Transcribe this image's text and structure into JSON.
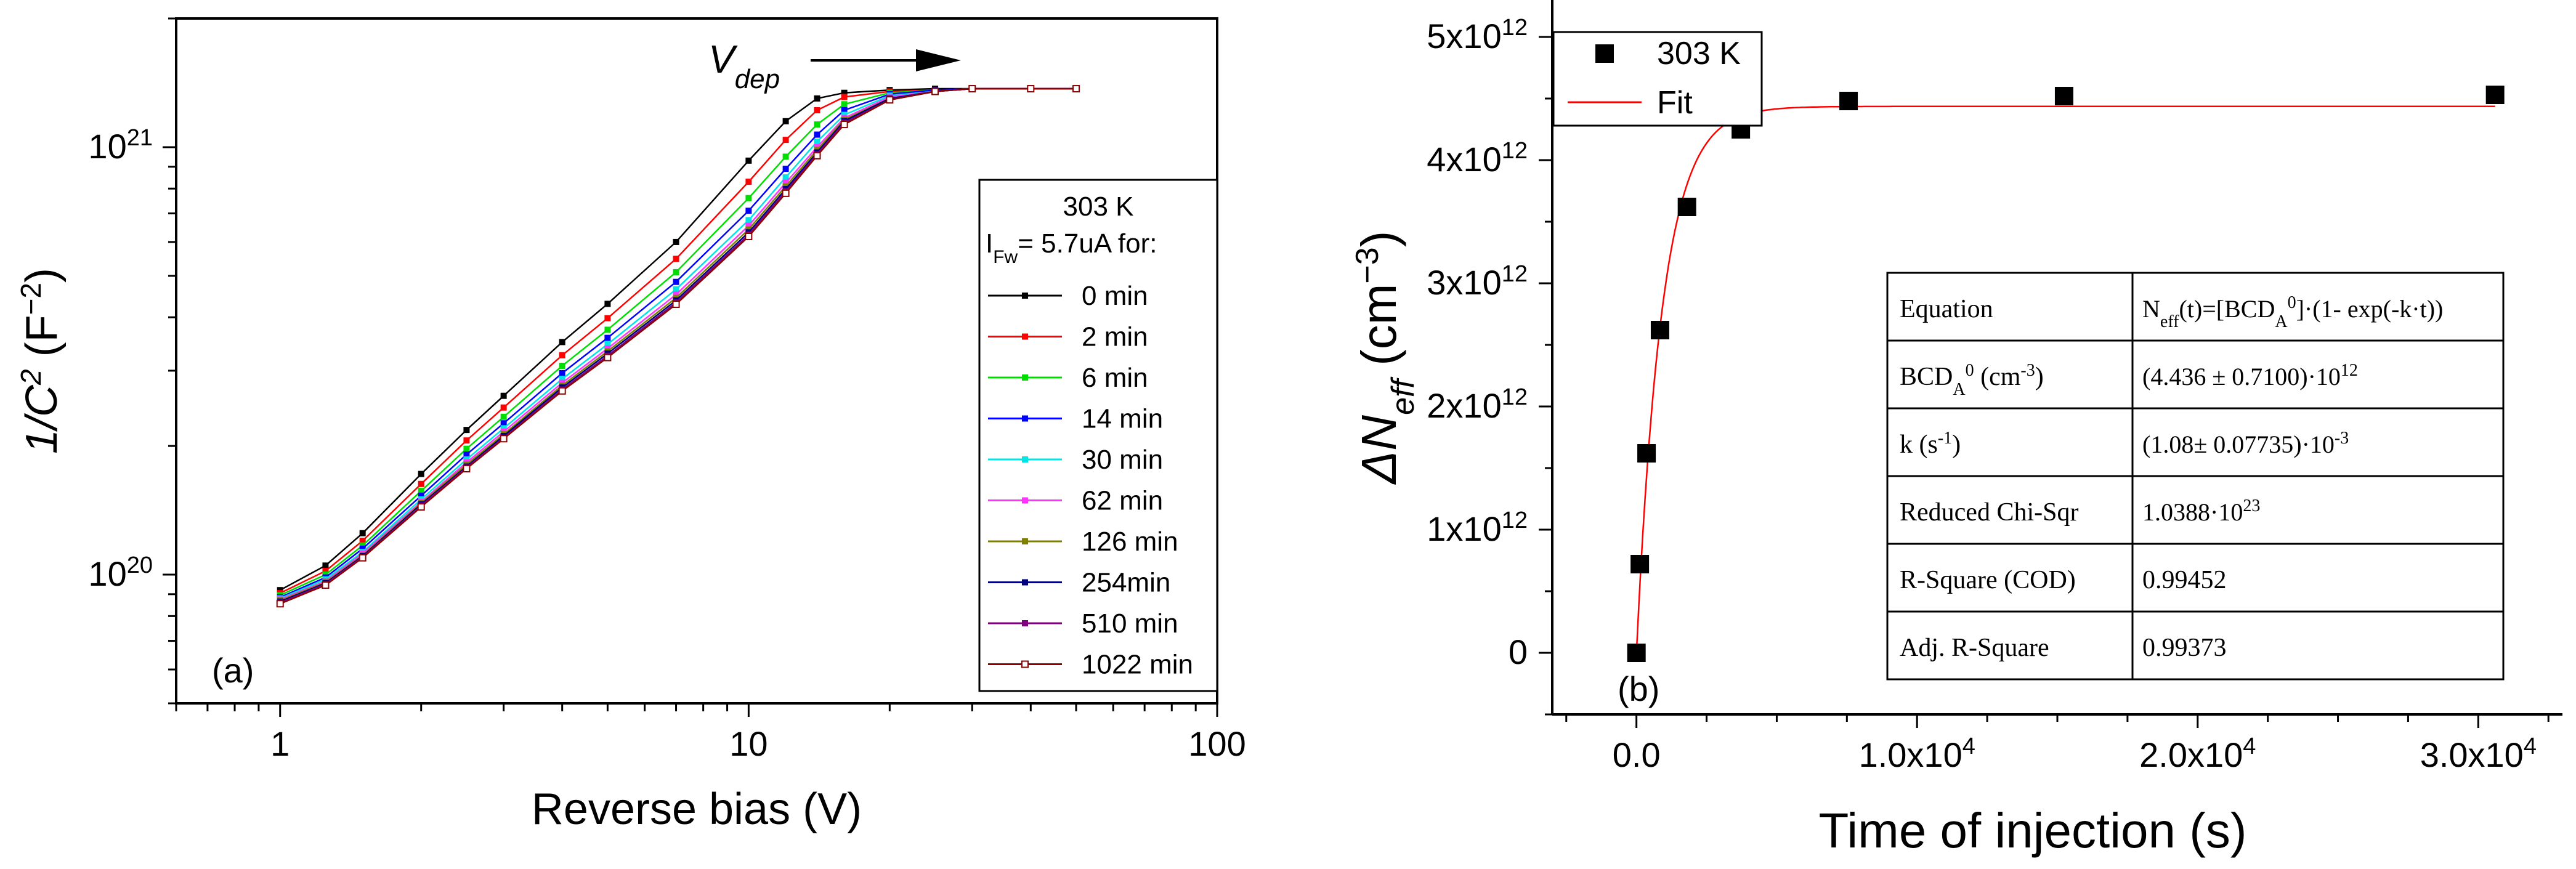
{
  "chart_data": [
    {
      "panel": "(a)",
      "type": "line",
      "scale": "log-log",
      "xlabel": "Reverse bias (V)",
      "ylabel_main": "1/C",
      "ylabel_sup": "2",
      "ylabel_unit": " (F",
      "ylabel_unit_sup": "−2",
      "ylabel_close": ")",
      "xlim": [
        0.6,
        100
      ],
      "ylim": [
        5e+19,
        2e+21
      ],
      "xticks": [
        {
          "v": 1,
          "label": "1"
        },
        {
          "v": 10,
          "label": "10"
        },
        {
          "v": 100,
          "label": "100"
        }
      ],
      "yticks": [
        {
          "v": 1e+20,
          "base": "10",
          "exp": "20"
        },
        {
          "v": 1e+21,
          "base": "10",
          "exp": "21"
        }
      ],
      "annotation": {
        "text": "V",
        "sub": "dep"
      },
      "legend": {
        "title_line1": "303 K",
        "title_line2_main": "I",
        "title_line2_sub": "Fw",
        "title_line2_rest": "= 5.7uA for:"
      },
      "x": [
        1,
        1.25,
        1.5,
        2,
        2.5,
        3,
        4,
        5,
        7,
        10,
        12,
        14,
        16,
        20,
        25,
        30,
        40,
        50
      ],
      "series": [
        {
          "name": "0 min",
          "color": "#000000",
          "values": [
            9.2e+19,
            1.05e+20,
            1.25e+20,
            1.72e+20,
            2.18e+20,
            2.62e+20,
            3.5e+20,
            4.3e+20,
            6e+20,
            9.3e+20,
            1.15e+21,
            1.3e+21,
            1.34e+21,
            1.36e+21,
            1.37e+21,
            1.37e+21,
            1.37e+21,
            1.37e+21
          ]
        },
        {
          "name": "2 min",
          "color": "#ff0000",
          "values": [
            9.05e+19,
            1.02e+20,
            1.2e+20,
            1.63e+20,
            2.06e+20,
            2.46e+20,
            3.26e+20,
            3.98e+20,
            5.48e+20,
            8.3e+20,
            1.04e+21,
            1.22e+21,
            1.31e+21,
            1.35e+21,
            1.36e+21,
            1.37e+21,
            1.37e+21,
            1.37e+21
          ]
        },
        {
          "name": "6 min",
          "color": "#00dd00",
          "values": [
            8.95e+19,
            1e+20,
            1.17e+20,
            1.57e+20,
            1.97e+20,
            2.34e+20,
            3.08e+20,
            3.74e+20,
            5.1e+20,
            7.6e+20,
            9.5e+20,
            1.13e+21,
            1.26e+21,
            1.34e+21,
            1.36e+21,
            1.37e+21,
            1.37e+21,
            1.37e+21
          ]
        },
        {
          "name": "14 min",
          "color": "#0000ff",
          "values": [
            8.85e+19,
            9.85e+19,
            1.15e+20,
            1.53e+20,
            1.91e+20,
            2.26e+20,
            2.96e+20,
            3.58e+20,
            4.84e+20,
            7.1e+20,
            8.9e+20,
            1.07e+21,
            1.22e+21,
            1.33e+21,
            1.36e+21,
            1.37e+21,
            1.37e+21,
            1.37e+21
          ]
        },
        {
          "name": "30 min",
          "color": "#00e5e5",
          "values": [
            8.8e+19,
            9.75e+19,
            1.13e+20,
            1.5e+20,
            1.86e+20,
            2.2e+20,
            2.87e+20,
            3.46e+20,
            4.65e+20,
            6.75e+20,
            8.5e+20,
            1.03e+21,
            1.19e+21,
            1.32e+21,
            1.35e+21,
            1.37e+21,
            1.37e+21,
            1.37e+21
          ]
        },
        {
          "name": "62 min",
          "color": "#ff33ff",
          "values": [
            8.75e+19,
            9.65e+19,
            1.12e+20,
            1.48e+20,
            1.83e+20,
            2.16e+20,
            2.81e+20,
            3.38e+20,
            4.52e+20,
            6.55e+20,
            8.25e+20,
            1e+21,
            1.17e+21,
            1.31e+21,
            1.35e+21,
            1.37e+21,
            1.37e+21,
            1.37e+21
          ]
        },
        {
          "name": "126 min",
          "color": "#808000",
          "values": [
            8.7e+19,
            9.6e+19,
            1.11e+20,
            1.47e+20,
            1.81e+20,
            2.13e+20,
            2.77e+20,
            3.33e+20,
            4.44e+20,
            6.42e+20,
            8.1e+20,
            9.85e+20,
            1.16e+21,
            1.3e+21,
            1.35e+21,
            1.37e+21,
            1.37e+21,
            1.37e+21
          ]
        },
        {
          "name": "254min",
          "color": "#000080",
          "values": [
            8.65e+19,
            9.55e+19,
            1.105e+20,
            1.46e+20,
            1.79e+20,
            2.11e+20,
            2.74e+20,
            3.29e+20,
            4.38e+20,
            6.32e+20,
            7.98e+20,
            9.72e+20,
            1.15e+21,
            1.3e+21,
            1.35e+21,
            1.37e+21,
            1.37e+21,
            1.37e+21
          ]
        },
        {
          "name": "510 min",
          "color": "#800080",
          "values": [
            8.6e+19,
            9.5e+19,
            1.1e+20,
            1.45e+20,
            1.78e+20,
            2.09e+20,
            2.71e+20,
            3.25e+20,
            4.33e+20,
            6.24e+20,
            7.88e+20,
            9.62e+20,
            1.14e+21,
            1.29e+21,
            1.35e+21,
            1.37e+21,
            1.37e+21,
            1.37e+21
          ]
        },
        {
          "name": "1022  min",
          "color": "#8b0000",
          "hollow": true,
          "values": [
            8.55e+19,
            9.45e+19,
            1.095e+20,
            1.44e+20,
            1.77e+20,
            2.08e+20,
            2.69e+20,
            3.22e+20,
            4.29e+20,
            6.18e+20,
            7.8e+20,
            9.55e+20,
            1.13e+21,
            1.29e+21,
            1.35e+21,
            1.37e+21,
            1.37e+21,
            1.37e+21
          ]
        }
      ]
    },
    {
      "panel": "(b)",
      "type": "scatter",
      "xlabel": "Time of injection (s)",
      "ylabel_delta": "ΔN",
      "ylabel_sub": "eff",
      "ylabel_unit": " (cm",
      "ylabel_unit_sup": "−3",
      "ylabel_close": ")",
      "xlim": [
        -3000,
        33000
      ],
      "ylim": [
        -500000000000.0,
        5300000000000.0
      ],
      "xticks": [
        {
          "v": 0,
          "label": "0.0"
        },
        {
          "v": 10000,
          "label": "1.0x10",
          "exp": "4"
        },
        {
          "v": 20000,
          "label": "2.0x10",
          "exp": "4"
        },
        {
          "v": 30000,
          "label": "3.0x10",
          "exp": "4"
        }
      ],
      "yticks": [
        {
          "v": 0,
          "label": "0"
        },
        {
          "v": 1000000000000.0,
          "label": "1x10",
          "exp": "12"
        },
        {
          "v": 2000000000000.0,
          "label": "2x10",
          "exp": "12"
        },
        {
          "v": 3000000000000.0,
          "label": "3x10",
          "exp": "12"
        },
        {
          "v": 4000000000000.0,
          "label": "4x10",
          "exp": "12"
        },
        {
          "v": 5000000000000.0,
          "label": "5x10",
          "exp": "12"
        }
      ],
      "legend": [
        {
          "name": "303 K",
          "marker": "square",
          "color": "#000000"
        },
        {
          "name": "Fit",
          "marker": "line",
          "color": "#ff0000"
        }
      ],
      "points": {
        "name": "303 K",
        "x": [
          0,
          120,
          360,
          840,
          1800,
          3720,
          7560,
          15240,
          30600
        ],
        "y": [
          0,
          720000000000.0,
          1620000000000.0,
          2620000000000.0,
          3620000000000.0,
          4250000000000.0,
          4480000000000.0,
          4520000000000.0,
          4530000000000.0
        ]
      },
      "fit": {
        "name": "Fit",
        "A": 4436000000000.0,
        "k": 0.00108,
        "x_range": [
          0,
          30600
        ]
      },
      "table": [
        {
          "label": "Equation",
          "value": "N_eff(t)=[BCD_A^0]·(1- exp(-k·t))"
        },
        {
          "label": "BCD_A^0 (cm^-3)",
          "value": "(4.436 ± 0.7100)·10^12"
        },
        {
          "label": "k (s^-1)",
          "value": "(1.08± 0.07735)·10^-3"
        },
        {
          "label": "Reduced Chi-Sqr",
          "value": "1.0388·10^23"
        },
        {
          "label": "R-Square (COD)",
          "value": "0.99452"
        },
        {
          "label": "Adj. R-Square",
          "value": "0.99373"
        }
      ]
    }
  ]
}
